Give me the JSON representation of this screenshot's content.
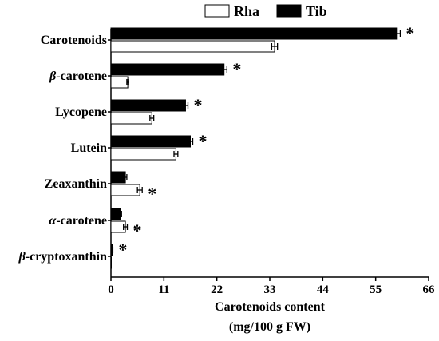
{
  "chart_data": {
    "type": "bar",
    "orientation": "horizontal",
    "categories": [
      "Carotenoids",
      "β-carotene",
      "Lycopene",
      "Lutein",
      "Zeaxanthin",
      "α-carotene",
      "β-cryptoxanthin"
    ],
    "series": [
      {
        "name": "Tib",
        "color": "#000000",
        "values": [
          59.5,
          23.5,
          15.5,
          16.5,
          3.0,
          2.0,
          0.3
        ],
        "errors": [
          0.6,
          0.6,
          0.5,
          0.5,
          0.3,
          0.2,
          0.1
        ]
      },
      {
        "name": "Rha",
        "color": "#ffffff",
        "values": [
          34.0,
          3.5,
          8.5,
          13.5,
          6.0,
          3.0,
          0.0
        ],
        "errors": [
          0.6,
          0.2,
          0.4,
          0.4,
          0.5,
          0.4,
          0.0
        ]
      }
    ],
    "significance": [
      "*",
      "*",
      "*",
      "*",
      "*",
      "*",
      "*"
    ],
    "xticks": [
      0,
      11,
      22,
      33,
      44,
      55,
      66
    ],
    "xlim": [
      0,
      66
    ],
    "xlabel_line1": "Carotenoids content",
    "xlabel_line2": "(mg/100 g FW)",
    "legend": {
      "position": "top",
      "items": [
        "Rha",
        "Tib"
      ]
    },
    "grid": false
  }
}
